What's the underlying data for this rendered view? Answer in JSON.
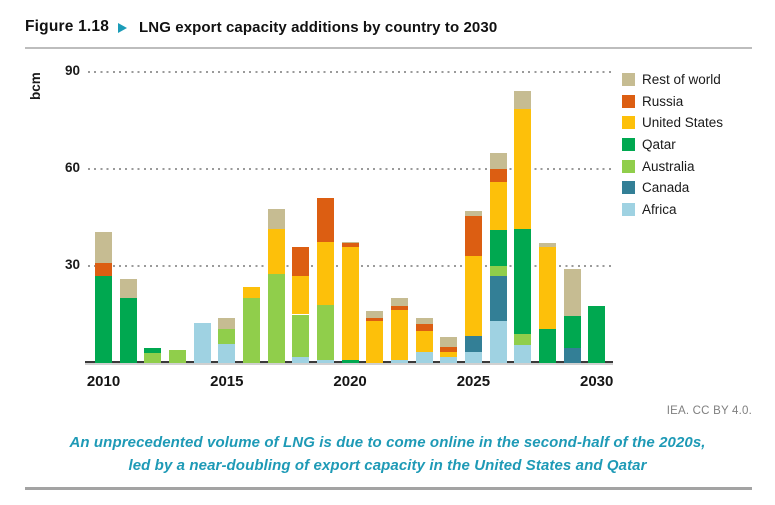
{
  "header": {
    "figure_label": "Figure 1.18",
    "title": "LNG export capacity additions by country to 2030"
  },
  "icons": {
    "figure_marker": "right-triangle"
  },
  "colors": {
    "accent_teal": "#1b9cb8",
    "text": "#1a1a1a",
    "license_gray": "#7f7f7f",
    "gridline_gray": "#9a9a9a",
    "axis_dark": "#3a3a3a",
    "divider_gray": "#b5b5b5"
  },
  "footer": {
    "license": "IEA. CC BY 4.0.",
    "caption_line1": "An unprecedented volume of LNG is due to come online in the second-half of the 2020s,",
    "caption_line2": "led by a near-doubling of export capacity in the United States and Qatar"
  },
  "chart_data": {
    "type": "bar",
    "stacked": true,
    "title": "LNG export capacity additions by country to 2030",
    "xlabel": "",
    "ylabel": "bcm",
    "ylim": [
      0,
      90
    ],
    "yticks": [
      30,
      60,
      90
    ],
    "grid": "dotted-horizontal",
    "legend_position": "right",
    "categories": [
      2010,
      2011,
      2012,
      2013,
      2014,
      2015,
      2016,
      2017,
      2018,
      2019,
      2020,
      2021,
      2022,
      2023,
      2024,
      2025,
      2026,
      2027,
      2028,
      2029,
      2030
    ],
    "xtick_labels": [
      "2010",
      "2015",
      "2020",
      "2025",
      "2030"
    ],
    "stack_order_bottom_to_top": [
      "Africa",
      "Canada",
      "Australia",
      "Qatar",
      "United States",
      "Russia",
      "Rest of world"
    ],
    "series": [
      {
        "name": "Rest of world",
        "color": "#c6bc92",
        "values": [
          9.5,
          6,
          0,
          0,
          0,
          3.5,
          0,
          6,
          0,
          0,
          0.5,
          2,
          2.5,
          2,
          3,
          1.5,
          5,
          5.5,
          1,
          14.5,
          0
        ]
      },
      {
        "name": "Russia",
        "color": "#dc5e12",
        "values": [
          4,
          0,
          0,
          0,
          0,
          0,
          0,
          0,
          9,
          13.5,
          1,
          1,
          1,
          2,
          1.5,
          12.5,
          4,
          0,
          0,
          0,
          0
        ]
      },
      {
        "name": "United States",
        "color": "#fdc00a",
        "values": [
          0,
          0,
          0,
          0,
          0,
          0,
          3.5,
          14,
          12,
          19.5,
          35,
          13,
          15.5,
          6.5,
          1.5,
          24.5,
          15,
          37,
          25.5,
          0,
          0
        ]
      },
      {
        "name": "Qatar",
        "color": "#00a850",
        "values": [
          27,
          20,
          1.5,
          0,
          0,
          0,
          0,
          0,
          0,
          0,
          1,
          0,
          0,
          0,
          0,
          0,
          11,
          32.5,
          10.5,
          10,
          17.5
        ]
      },
      {
        "name": "Australia",
        "color": "#90ce4b",
        "values": [
          0,
          0,
          3,
          4,
          0,
          4.5,
          20,
          27.5,
          13,
          17,
          0,
          0,
          0,
          0,
          0,
          0,
          3,
          3.5,
          0,
          0,
          0
        ]
      },
      {
        "name": "Canada",
        "color": "#337f96",
        "values": [
          0,
          0,
          0,
          0,
          0,
          0,
          0,
          0,
          0,
          0,
          0,
          0,
          0,
          0,
          0,
          5,
          14,
          0,
          0,
          4.5,
          0
        ]
      },
      {
        "name": "Africa",
        "color": "#9fd2e2",
        "values": [
          0,
          0,
          0,
          0,
          12.5,
          6,
          0,
          0,
          2,
          1,
          0,
          0,
          1,
          3.5,
          2,
          3.5,
          13,
          5.5,
          0,
          0,
          0
        ]
      }
    ]
  }
}
